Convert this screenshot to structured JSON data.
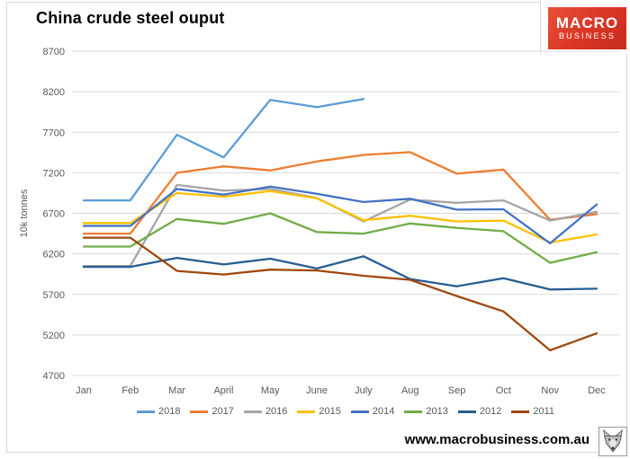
{
  "header": {
    "title": "China crude steel ouput"
  },
  "logo": {
    "line1": "MACRO",
    "line2": "BUSINESS",
    "bg_color": "#D93524"
  },
  "footer": {
    "url": "www.macrobusiness.com.au",
    "icon": "wolf-logo-icon"
  },
  "chart_data": {
    "type": "line",
    "title": "China crude steel ouput",
    "xlabel": "",
    "ylabel": "10k tonnes",
    "ylim": [
      4700,
      8700
    ],
    "ytick_step": 500,
    "yticks": [
      8700,
      8200,
      7700,
      7200,
      6700,
      6200,
      5700,
      5200,
      4700
    ],
    "grid": true,
    "gridline_color": "#D9D9D9",
    "axis_text_color": "#595959",
    "legend_position": "bottom",
    "categories": [
      "Jan",
      "Feb",
      "Mar",
      "April",
      "May",
      "June",
      "July",
      "Aug",
      "Sep",
      "Oct",
      "Nov",
      "Dec"
    ],
    "series": [
      {
        "name": "2018",
        "color": "#5B9BD5",
        "values": [
          6860,
          6860,
          7670,
          7390,
          8100,
          8010,
          8110,
          null,
          null,
          null,
          null,
          null
        ]
      },
      {
        "name": "2017",
        "color": "#ED7D31",
        "values": [
          6450,
          6450,
          7200,
          7280,
          7230,
          7340,
          7420,
          7455,
          7190,
          7240,
          6620,
          6690
        ]
      },
      {
        "name": "2016",
        "color": "#A5A5A5",
        "values": [
          6050,
          6050,
          7050,
          6980,
          7000,
          6890,
          6600,
          6870,
          6830,
          6860,
          6610,
          6720
        ]
      },
      {
        "name": "2015",
        "color": "#FFC000",
        "values": [
          6580,
          6580,
          6950,
          6905,
          6975,
          6885,
          6615,
          6670,
          6600,
          6610,
          6340,
          6440
        ]
      },
      {
        "name": "2014",
        "color": "#4472C4",
        "values": [
          6545,
          6545,
          7000,
          6930,
          7030,
          6940,
          6840,
          6880,
          6745,
          6750,
          6330,
          6810
        ]
      },
      {
        "name": "2013",
        "color": "#70AD47",
        "values": [
          6290,
          6290,
          6630,
          6570,
          6700,
          6470,
          6450,
          6575,
          6520,
          6480,
          6090,
          6220
        ]
      },
      {
        "name": "2012",
        "color": "#255E91",
        "values": [
          6040,
          6040,
          6150,
          6070,
          6140,
          6020,
          6170,
          5890,
          5800,
          5900,
          5760,
          5770
        ]
      },
      {
        "name": "2011",
        "color": "#9E480E",
        "values": [
          6400,
          6400,
          5990,
          5945,
          6005,
          5995,
          5930,
          5880,
          5680,
          5490,
          5010,
          5220
        ]
      }
    ]
  }
}
